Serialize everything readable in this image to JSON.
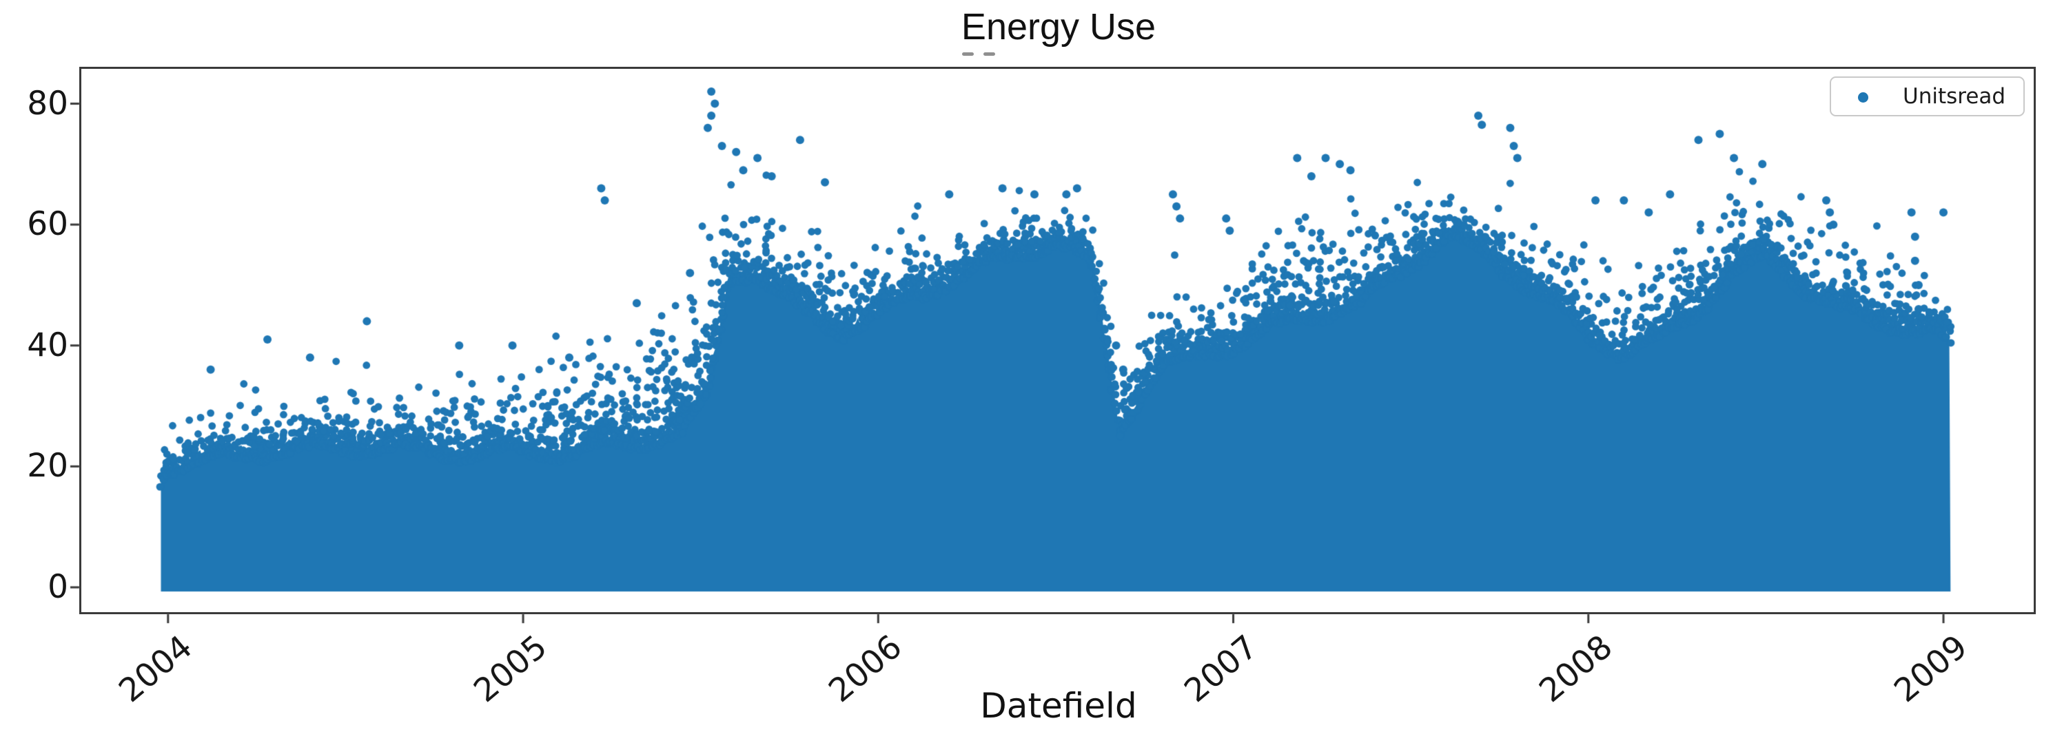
{
  "chart_data": {
    "type": "scatter",
    "title": "Energy Use",
    "xlabel": "Datefield",
    "ylabel": "",
    "legend": {
      "label": "Unitsread",
      "position": "upper right"
    },
    "marker_color": "#1f77b4",
    "axis_color": "#3a3a3a",
    "background_color": "#ffffff",
    "grid": false,
    "x_ticks": [
      2004,
      2005,
      2006,
      2007,
      2008,
      2009
    ],
    "x_tick_labels": [
      "2004",
      "2005",
      "2006",
      "2007",
      "2008",
      "2009"
    ],
    "y_ticks": [
      0,
      20,
      40,
      60,
      80
    ],
    "y_tick_labels": [
      "0",
      "20",
      "40",
      "60",
      "80"
    ],
    "xlim": [
      2003.75,
      2009.26
    ],
    "ylim": [
      -4.45,
      86.1
    ],
    "x_data_range": [
      2003.98,
      2009.02
    ],
    "y_min_observed": 0,
    "y_max_observed": 82,
    "envelope_note": "Columns of points span from 0 up to 'solid' (fully dense top) with sparse scatter thinning out up to 'scatter'. t is in fractional years.",
    "envelope": [
      [
        2003.98,
        20,
        24
      ],
      [
        2004.0,
        22,
        28
      ],
      [
        2004.1,
        22,
        30
      ],
      [
        2004.25,
        23,
        33
      ],
      [
        2004.4,
        23,
        34
      ],
      [
        2004.55,
        24,
        34
      ],
      [
        2004.7,
        24,
        33
      ],
      [
        2004.85,
        24,
        35
      ],
      [
        2005.0,
        24,
        37
      ],
      [
        2005.15,
        23,
        40
      ],
      [
        2005.3,
        24,
        44
      ],
      [
        2005.45,
        26,
        49
      ],
      [
        2005.52,
        32,
        58
      ],
      [
        2005.58,
        52,
        70
      ],
      [
        2005.65,
        54,
        66
      ],
      [
        2005.72,
        50,
        63
      ],
      [
        2005.8,
        47,
        60
      ],
      [
        2005.9,
        44,
        57
      ],
      [
        2006.0,
        46,
        58
      ],
      [
        2006.1,
        49,
        60
      ],
      [
        2006.25,
        52,
        62
      ],
      [
        2006.4,
        56,
        64
      ],
      [
        2006.5,
        58,
        65
      ],
      [
        2006.6,
        55,
        63
      ],
      [
        2006.65,
        38,
        50
      ],
      [
        2006.68,
        28,
        38
      ],
      [
        2006.72,
        32,
        42
      ],
      [
        2006.8,
        38,
        50
      ],
      [
        2006.9,
        40,
        54
      ],
      [
        2007.0,
        41,
        56
      ],
      [
        2007.1,
        43,
        60
      ],
      [
        2007.2,
        45,
        64
      ],
      [
        2007.35,
        47,
        63
      ],
      [
        2007.5,
        55,
        66
      ],
      [
        2007.6,
        60,
        68
      ],
      [
        2007.7,
        57,
        66
      ],
      [
        2007.8,
        53,
        64
      ],
      [
        2007.9,
        48,
        60
      ],
      [
        2008.0,
        42,
        56
      ],
      [
        2008.1,
        39,
        52
      ],
      [
        2008.2,
        41,
        57
      ],
      [
        2008.3,
        46,
        63
      ],
      [
        2008.4,
        53,
        67
      ],
      [
        2008.5,
        56,
        66
      ],
      [
        2008.6,
        52,
        62
      ],
      [
        2008.7,
        48,
        59
      ],
      [
        2008.8,
        45,
        57
      ],
      [
        2008.9,
        44,
        56
      ],
      [
        2008.97,
        43,
        52
      ],
      [
        2009.02,
        40,
        47
      ]
    ],
    "outliers": [
      [
        2004.12,
        36
      ],
      [
        2004.28,
        41
      ],
      [
        2004.4,
        38
      ],
      [
        2004.56,
        44
      ],
      [
        2004.82,
        40
      ],
      [
        2004.97,
        40
      ],
      [
        2005.13,
        38
      ],
      [
        2005.22,
        66
      ],
      [
        2005.23,
        64
      ],
      [
        2005.32,
        47
      ],
      [
        2005.47,
        52
      ],
      [
        2005.53,
        82
      ],
      [
        2005.54,
        80
      ],
      [
        2005.53,
        78
      ],
      [
        2005.52,
        76
      ],
      [
        2005.56,
        73
      ],
      [
        2005.6,
        72
      ],
      [
        2005.62,
        69
      ],
      [
        2005.66,
        71
      ],
      [
        2005.7,
        68
      ],
      [
        2005.78,
        74
      ],
      [
        2005.85,
        67
      ],
      [
        2006.2,
        65
      ],
      [
        2006.35,
        66
      ],
      [
        2006.44,
        65
      ],
      [
        2006.53,
        65
      ],
      [
        2006.56,
        66
      ],
      [
        2006.67,
        40
      ],
      [
        2006.69,
        36
      ],
      [
        2006.7,
        33
      ],
      [
        2006.83,
        65
      ],
      [
        2006.84,
        63
      ],
      [
        2006.85,
        61
      ],
      [
        2006.98,
        61
      ],
      [
        2006.99,
        59
      ],
      [
        2007.18,
        71
      ],
      [
        2007.22,
        68
      ],
      [
        2007.26,
        71
      ],
      [
        2007.3,
        70
      ],
      [
        2007.33,
        69
      ],
      [
        2007.69,
        78
      ],
      [
        2007.7,
        76.5
      ],
      [
        2007.78,
        76
      ],
      [
        2007.79,
        73
      ],
      [
        2007.8,
        71
      ],
      [
        2008.02,
        64
      ],
      [
        2008.1,
        64
      ],
      [
        2008.17,
        62
      ],
      [
        2008.23,
        65
      ],
      [
        2008.31,
        74
      ],
      [
        2008.37,
        75
      ],
      [
        2008.41,
        71
      ],
      [
        2008.49,
        70
      ],
      [
        2008.67,
        64
      ],
      [
        2008.68,
        62
      ],
      [
        2008.69,
        60
      ],
      [
        2008.91,
        62
      ],
      [
        2008.92,
        58
      ],
      [
        2008.92,
        54
      ],
      [
        2008.93,
        50
      ],
      [
        2008.93,
        46
      ],
      [
        2009.0,
        62
      ]
    ]
  }
}
